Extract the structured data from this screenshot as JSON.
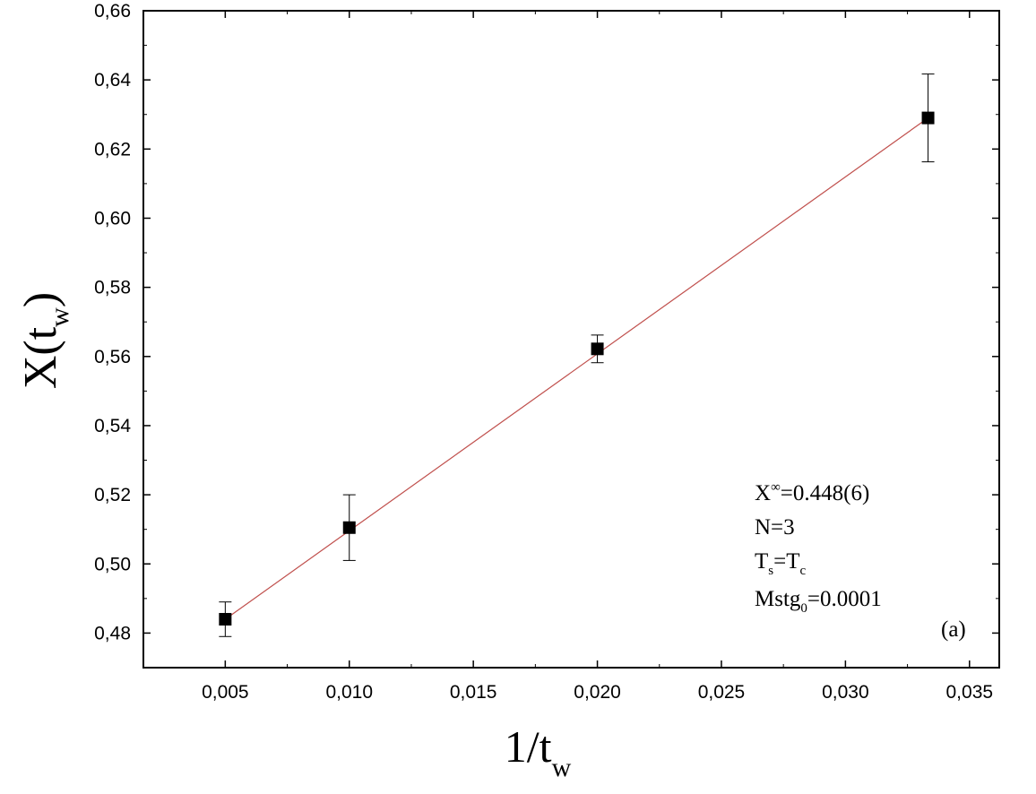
{
  "chart_data": {
    "type": "scatter",
    "xlabel": {
      "main": "1/t",
      "sub": "w"
    },
    "ylabel": {
      "main": "X(t",
      "sub": "w",
      "close": ")"
    },
    "xlim": [
      0.0017,
      0.0362
    ],
    "ylim": [
      0.47,
      0.66
    ],
    "x_ticks": [
      0.005,
      0.01,
      0.015,
      0.02,
      0.025,
      0.03,
      0.035
    ],
    "x_tick_labels": [
      "0,005",
      "0,010",
      "0,015",
      "0,020",
      "0,025",
      "0,030",
      "0,035"
    ],
    "y_ticks": [
      0.48,
      0.5,
      0.52,
      0.54,
      0.56,
      0.58,
      0.6,
      0.62,
      0.64,
      0.66
    ],
    "y_tick_labels": [
      "0,48",
      "0,50",
      "0,52",
      "0,54",
      "0,56",
      "0,58",
      "0,60",
      "0,62",
      "0,64",
      "0,66"
    ],
    "grid": false,
    "series": [
      {
        "marker": "square",
        "color": "#000000",
        "points": [
          {
            "x": 0.005,
            "y": 0.484,
            "err": 0.005
          },
          {
            "x": 0.01,
            "y": 0.5105,
            "err": 0.0095
          },
          {
            "x": 0.02,
            "y": 0.5622,
            "err": 0.004
          },
          {
            "x": 0.03333,
            "y": 0.629,
            "err": 0.0127
          }
        ]
      }
    ],
    "fit_line": {
      "color": "#c0504d",
      "x": [
        0.005,
        0.03333
      ],
      "y": [
        0.484,
        0.629
      ]
    },
    "annotations": {
      "x_inf": {
        "main": "X",
        "sup": "∞",
        "rest": "=0.448(6)"
      },
      "n": "N=3",
      "ts": {
        "a": "T",
        "a_sub": "s",
        "eq": "=T",
        "b_sub": "c"
      },
      "mstg": {
        "main": "Mstg",
        "sub": "0",
        "rest": "=0.0001"
      },
      "panel": "(a)"
    }
  }
}
